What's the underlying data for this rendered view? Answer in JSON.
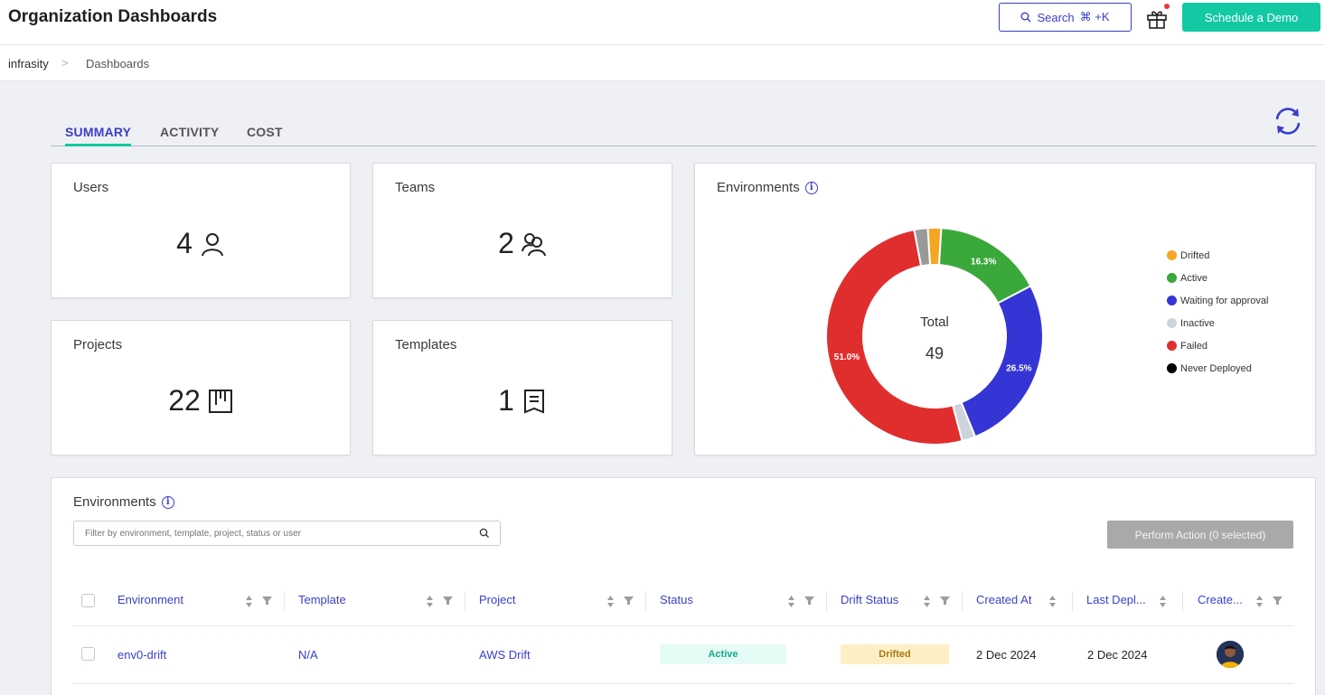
{
  "header": {
    "title": "Organization Dashboards",
    "search_label": "Search",
    "search_shortcut": "⌘ +K",
    "demo_label": "Schedule a Demo"
  },
  "breadcrumb": {
    "org": "infrasity",
    "separator": ">",
    "page": "Dashboards"
  },
  "tabs": [
    {
      "label": "SUMMARY",
      "active": true
    },
    {
      "label": "ACTIVITY",
      "active": false
    },
    {
      "label": "COST",
      "active": false
    }
  ],
  "stats": {
    "users": {
      "title": "Users",
      "value": "4",
      "icon": "user-icon"
    },
    "teams": {
      "title": "Teams",
      "value": "2",
      "icon": "team-icon"
    },
    "projects": {
      "title": "Projects",
      "value": "22",
      "icon": "project-icon"
    },
    "templates": {
      "title": "Templates",
      "value": "1",
      "icon": "template-icon"
    }
  },
  "env_chart": {
    "title": "Environments",
    "total_label": "Total",
    "total_value": "49",
    "chart_data": {
      "type": "pie",
      "categories": [
        "Drifted",
        "Active",
        "Waiting for approval",
        "Inactive",
        "Failed",
        "Never Deployed"
      ],
      "values": [
        2.0,
        16.3,
        26.5,
        2.0,
        51.0,
        2.0
      ],
      "labels": [
        "",
        "16.3%",
        "26.5%",
        "",
        "51.0%",
        ""
      ],
      "colors": [
        "#f5a623",
        "#3aa83a",
        "#3535d6",
        "#cdd3dc",
        "#e02e2e",
        "#999999"
      ],
      "legend_colors": [
        "#f5a623",
        "#3aa83a",
        "#3535d6",
        "#cdd3dc",
        "#e02e2e",
        "#000000"
      ],
      "legend_position": "right"
    }
  },
  "env_table": {
    "title": "Environments",
    "filter_placeholder": "Filter by environment, template, project, status or user",
    "perform_label": "Perform Action (0 selected)",
    "columns": [
      "Environment",
      "Template",
      "Project",
      "Status",
      "Drift Status",
      "Created At",
      "Last Depl...",
      "Create..."
    ],
    "rows": [
      {
        "environment": "env0-drift",
        "template": "N/A",
        "project": "AWS Drift",
        "status": "Active",
        "drift_status": "Drifted",
        "created_at": "2 Dec 2024",
        "last_deployed": "2 Dec 2024"
      }
    ]
  },
  "colors": {
    "accent": "#3a3fc9",
    "brand": "#13c9a4",
    "active_bg": "#e5fbf5",
    "drifted_bg": "#fdeec6"
  }
}
